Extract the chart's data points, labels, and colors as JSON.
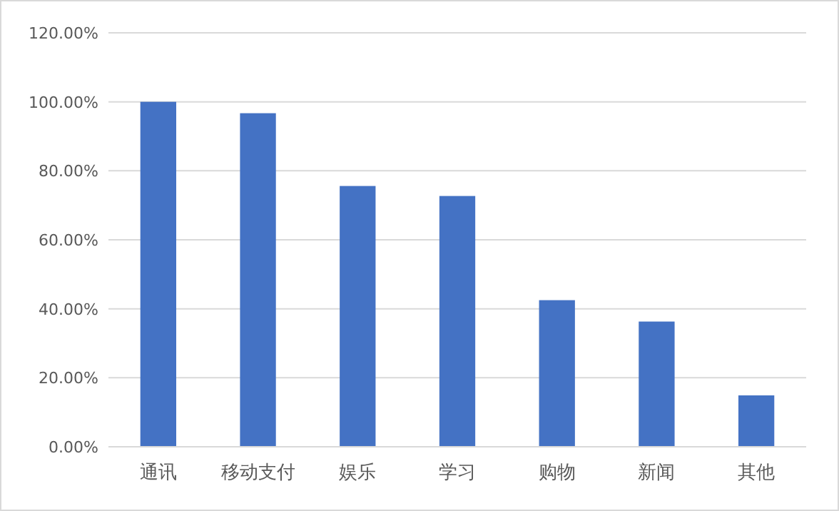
{
  "chart_data": {
    "type": "bar",
    "categories": [
      "通讯",
      "移动支付",
      "娱乐",
      "学习",
      "购物",
      "新闻",
      "其他"
    ],
    "values": [
      100,
      96.7,
      75.6,
      72.7,
      42.5,
      36.3,
      14.9
    ],
    "color": "#4472c4",
    "ylim": [
      0,
      120
    ],
    "yticks": [
      {
        "value": 0,
        "label": "0.00%"
      },
      {
        "value": 20,
        "label": "20.00%"
      },
      {
        "value": 40,
        "label": "40.00%"
      },
      {
        "value": 60,
        "label": "60.00%"
      },
      {
        "value": 80,
        "label": "80.00%"
      },
      {
        "value": 100,
        "label": "100.00%"
      },
      {
        "value": 120,
        "label": "120.00%"
      }
    ],
    "grid": "y"
  }
}
